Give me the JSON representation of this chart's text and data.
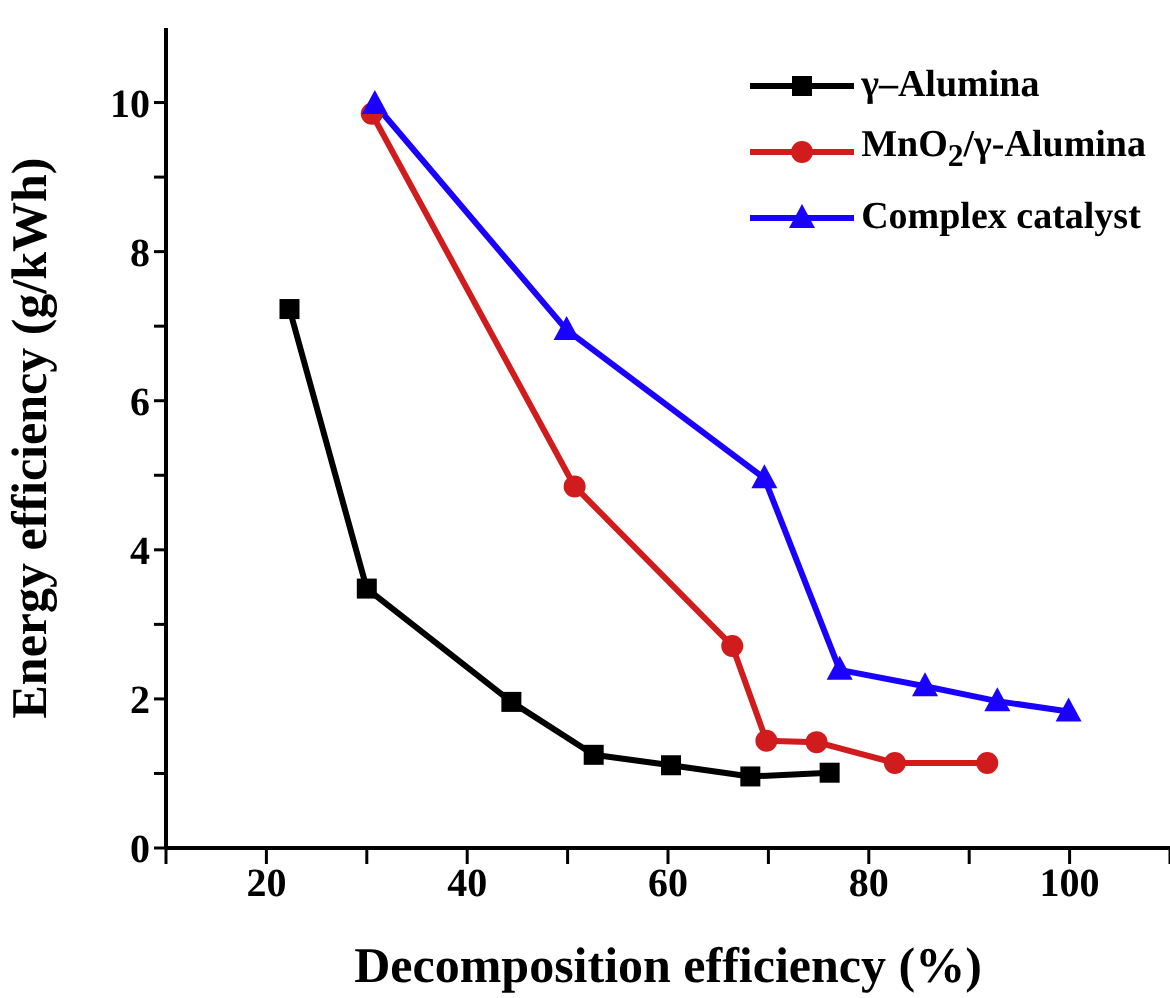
{
  "chart_data": {
    "type": "line",
    "xlabel": "Decomposition efficiency (%)",
    "ylabel": "Energy efficiency (g/kWh)",
    "xlim": [
      10,
      110
    ],
    "xticks": [
      {
        "value": 10,
        "label": null
      },
      20,
      {
        "value": 30,
        "label": null
      },
      40,
      {
        "value": 50,
        "label": null
      },
      60,
      {
        "value": 70,
        "label": null
      },
      80,
      {
        "value": 90,
        "label": null
      },
      100,
      {
        "value": 110,
        "label": null
      }
    ],
    "ylim": [
      0,
      11
    ],
    "yticks": [
      0,
      {
        "value": 1,
        "label": null
      },
      2,
      {
        "value": 3,
        "label": null
      },
      4,
      {
        "value": 5,
        "label": null
      },
      6,
      {
        "value": 7,
        "label": null
      },
      8,
      {
        "value": 9,
        "label": null
      },
      10
    ],
    "grid": false,
    "legend": "top right",
    "line_style": "solid",
    "series": [
      {
        "name": "γ–Alumina",
        "color": "#000000",
        "marker": "square",
        "x": [
          22.3,
          30.0,
          44.4,
          52.6,
          60.3,
          68.2,
          76.1
        ],
        "values": [
          7.23,
          3.48,
          1.96,
          1.25,
          1.11,
          0.96,
          1.01
        ]
      },
      {
        "name": "MnO$_{2}$/γ-Alumina",
        "color": "#d01c1c",
        "marker": "circle",
        "x": [
          30.5,
          50.7,
          66.4,
          69.8,
          74.8,
          82.6,
          91.8
        ],
        "values": [
          9.85,
          4.85,
          2.71,
          1.44,
          1.42,
          1.14,
          1.14
        ]
      },
      {
        "name": "Complex catalyst",
        "color": "#1a00ff",
        "marker": "triangle",
        "x": [
          30.8,
          49.9,
          69.6,
          77.1,
          85.6,
          92.8,
          99.9
        ],
        "values": [
          9.98,
          6.95,
          4.96,
          2.39,
          2.17,
          1.97,
          1.83
        ]
      }
    ]
  }
}
